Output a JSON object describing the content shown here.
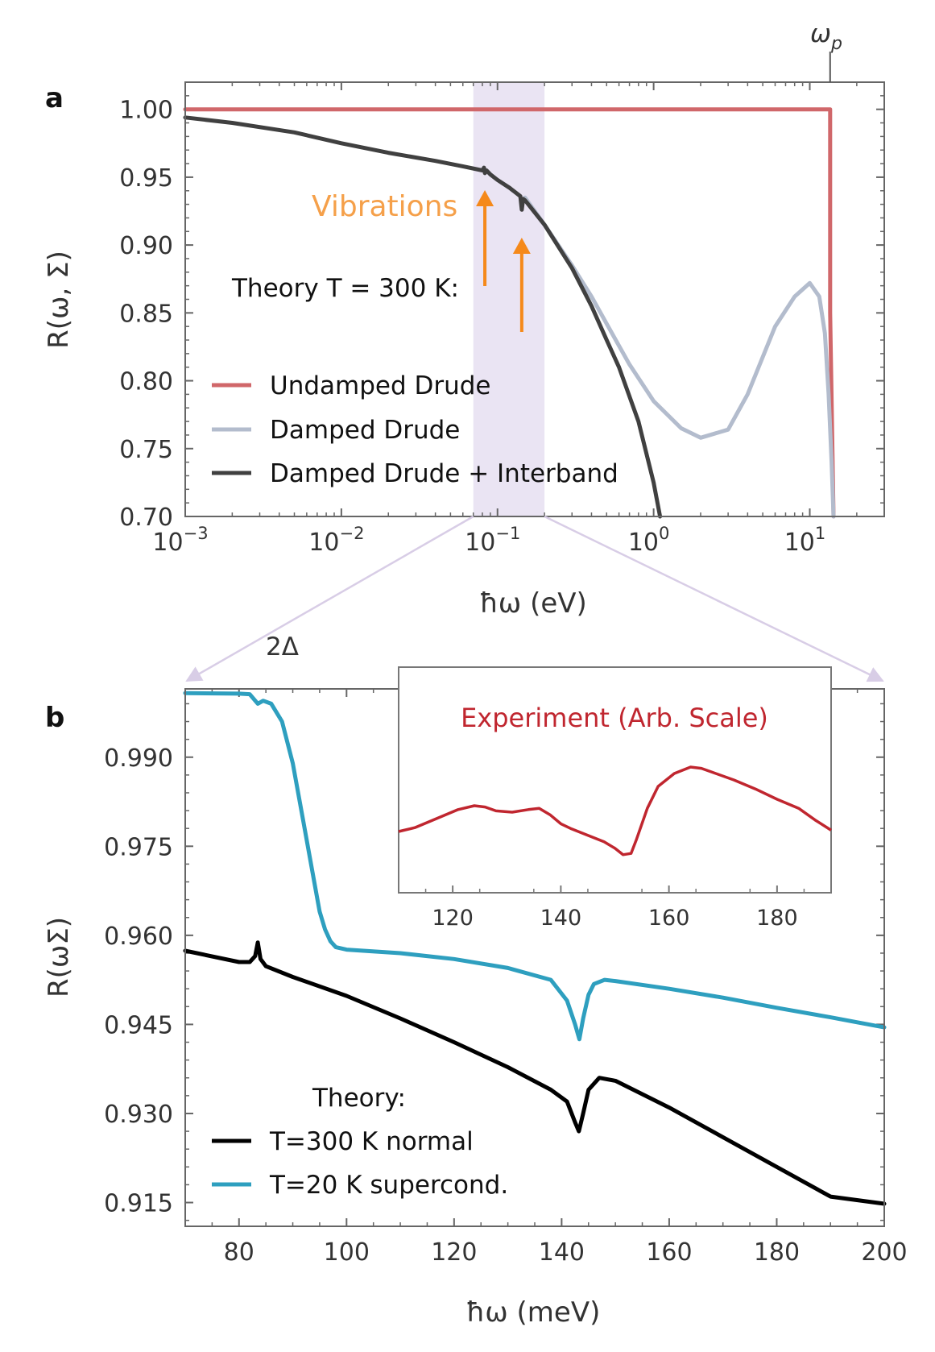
{
  "chart_data": [
    {
      "panel": "a",
      "type": "line",
      "xscale": "log",
      "xlabel": "ħω (eV)",
      "ylabel": "R(ω, Σ)",
      "xlim": [
        0.001,
        30
      ],
      "ylim": [
        0.7,
        1.02
      ],
      "xticks": [
        0.001,
        0.01,
        0.1,
        1,
        10
      ],
      "xtick_labels": [
        {
          "base": "10",
          "exp": "−3"
        },
        {
          "base": "10",
          "exp": "−2"
        },
        {
          "base": "10",
          "exp": "−1"
        },
        {
          "base": "10",
          "exp": "0"
        },
        {
          "base": "10",
          "exp": "1"
        }
      ],
      "yticks": [
        0.7,
        0.75,
        0.8,
        0.85,
        0.9,
        0.95,
        1.0
      ],
      "ytick_labels": [
        "0.70",
        "0.75",
        "0.80",
        "0.85",
        "0.90",
        "0.95",
        "1.00"
      ],
      "top_marker": {
        "x": 13.5,
        "label": "ω",
        "sub": "p"
      },
      "highlight_band": [
        0.07,
        0.2
      ],
      "annotation": "Vibrations",
      "vibration_arrows": [
        0.083,
        0.143
      ],
      "legend_title": "Theory T = 300 K:",
      "series": [
        {
          "name": "Undamped Drude",
          "color": "#d0676a",
          "x": [
            0.001,
            13.5,
            13.5,
            14.2
          ],
          "y": [
            1.0,
            1.0,
            0.85,
            0.7
          ]
        },
        {
          "name": "Damped Drude",
          "color": "#b3bccd",
          "x": [
            0.15,
            0.2,
            0.3,
            0.4,
            0.5,
            0.7,
            1.0,
            1.5,
            2.0,
            3.0,
            4.0,
            6.0,
            8.0,
            10.0,
            11.5,
            12.5,
            13.2,
            13.8,
            14.2
          ],
          "y": [
            0.935,
            0.915,
            0.885,
            0.862,
            0.842,
            0.812,
            0.785,
            0.765,
            0.758,
            0.764,
            0.79,
            0.84,
            0.862,
            0.872,
            0.862,
            0.835,
            0.79,
            0.74,
            0.7
          ]
        },
        {
          "name": "Damped Drude + Interband",
          "color": "#404040",
          "x": [
            0.001,
            0.002,
            0.005,
            0.01,
            0.02,
            0.04,
            0.06,
            0.08,
            0.082,
            0.083,
            0.085,
            0.09,
            0.1,
            0.12,
            0.14,
            0.143,
            0.146,
            0.15,
            0.2,
            0.3,
            0.4,
            0.5,
            0.6,
            0.8,
            1.0,
            1.1
          ],
          "y": [
            0.994,
            0.99,
            0.983,
            0.975,
            0.968,
            0.962,
            0.958,
            0.955,
            0.957,
            0.953,
            0.955,
            0.952,
            0.948,
            0.942,
            0.936,
            0.926,
            0.934,
            0.933,
            0.915,
            0.883,
            0.855,
            0.83,
            0.81,
            0.77,
            0.725,
            0.7
          ]
        }
      ]
    },
    {
      "panel": "b",
      "type": "line",
      "xlabel": "ħω (meV)",
      "ylabel": "R(ωΣ)",
      "xlim": [
        70,
        200
      ],
      "ylim": [
        0.911,
        1.0015
      ],
      "xticks": [
        80,
        100,
        120,
        140,
        160,
        180,
        200
      ],
      "xtick_labels": [
        "80",
        "100",
        "120",
        "140",
        "160",
        "180",
        "200"
      ],
      "yticks": [
        0.915,
        0.93,
        0.945,
        0.96,
        0.975,
        0.99
      ],
      "ytick_labels": [
        "0.915",
        "0.930",
        "0.945",
        "0.960",
        "0.975",
        "0.990"
      ],
      "gap_label": "2Δ",
      "legend_title": "Theory:",
      "series": [
        {
          "name": "T=300 K normal",
          "color": "#000000",
          "x": [
            70,
            80,
            82,
            83,
            83.5,
            84,
            85,
            90,
            100,
            110,
            120,
            130,
            138,
            141,
            142.5,
            143.2,
            144,
            145,
            147,
            150,
            160,
            170,
            180,
            190,
            200
          ],
          "y": [
            0.9574,
            0.9555,
            0.9555,
            0.9565,
            0.9588,
            0.956,
            0.9548,
            0.953,
            0.9498,
            0.946,
            0.942,
            0.9378,
            0.934,
            0.932,
            0.9285,
            0.927,
            0.93,
            0.934,
            0.936,
            0.9355,
            0.931,
            0.926,
            0.921,
            0.916,
            0.9148
          ]
        },
        {
          "name": "T=20 K supercond.",
          "color": "#2e9fbf",
          "x": [
            70,
            80,
            82,
            83.5,
            84.5,
            86,
            88,
            90,
            92,
            94,
            95,
            96,
            97,
            98,
            100,
            110,
            120,
            130,
            138,
            141,
            142.5,
            143.3,
            144,
            145,
            146,
            148,
            150,
            160,
            170,
            180,
            190,
            200
          ],
          "y": [
            1.0008,
            1.0007,
            1.0006,
            0.999,
            0.9995,
            0.999,
            0.996,
            0.989,
            0.979,
            0.969,
            0.964,
            0.961,
            0.959,
            0.958,
            0.9576,
            0.957,
            0.956,
            0.9545,
            0.9525,
            0.949,
            0.945,
            0.9425,
            0.946,
            0.95,
            0.9518,
            0.9525,
            0.9523,
            0.951,
            0.9495,
            0.9478,
            0.9462,
            0.9445
          ]
        }
      ],
      "inset": {
        "title": "Experiment (Arb. Scale)",
        "color": "#c0262f",
        "xlim": [
          110,
          190
        ],
        "xticks": [
          120,
          140,
          160,
          180
        ],
        "xtick_labels": [
          "120",
          "140",
          "160",
          "180"
        ],
        "x": [
          110,
          113,
          117,
          121,
          124,
          126,
          128,
          131,
          134,
          136,
          138,
          140,
          142,
          145,
          148,
          150,
          151.5,
          153,
          154,
          156,
          158,
          161,
          164,
          166,
          168,
          172,
          176,
          180,
          184,
          187,
          190
        ],
        "y": [
          0.3,
          0.33,
          0.4,
          0.47,
          0.5,
          0.49,
          0.46,
          0.45,
          0.47,
          0.48,
          0.43,
          0.36,
          0.32,
          0.27,
          0.22,
          0.17,
          0.12,
          0.13,
          0.24,
          0.48,
          0.65,
          0.75,
          0.8,
          0.79,
          0.76,
          0.7,
          0.63,
          0.55,
          0.48,
          0.39,
          0.31
        ]
      }
    }
  ]
}
